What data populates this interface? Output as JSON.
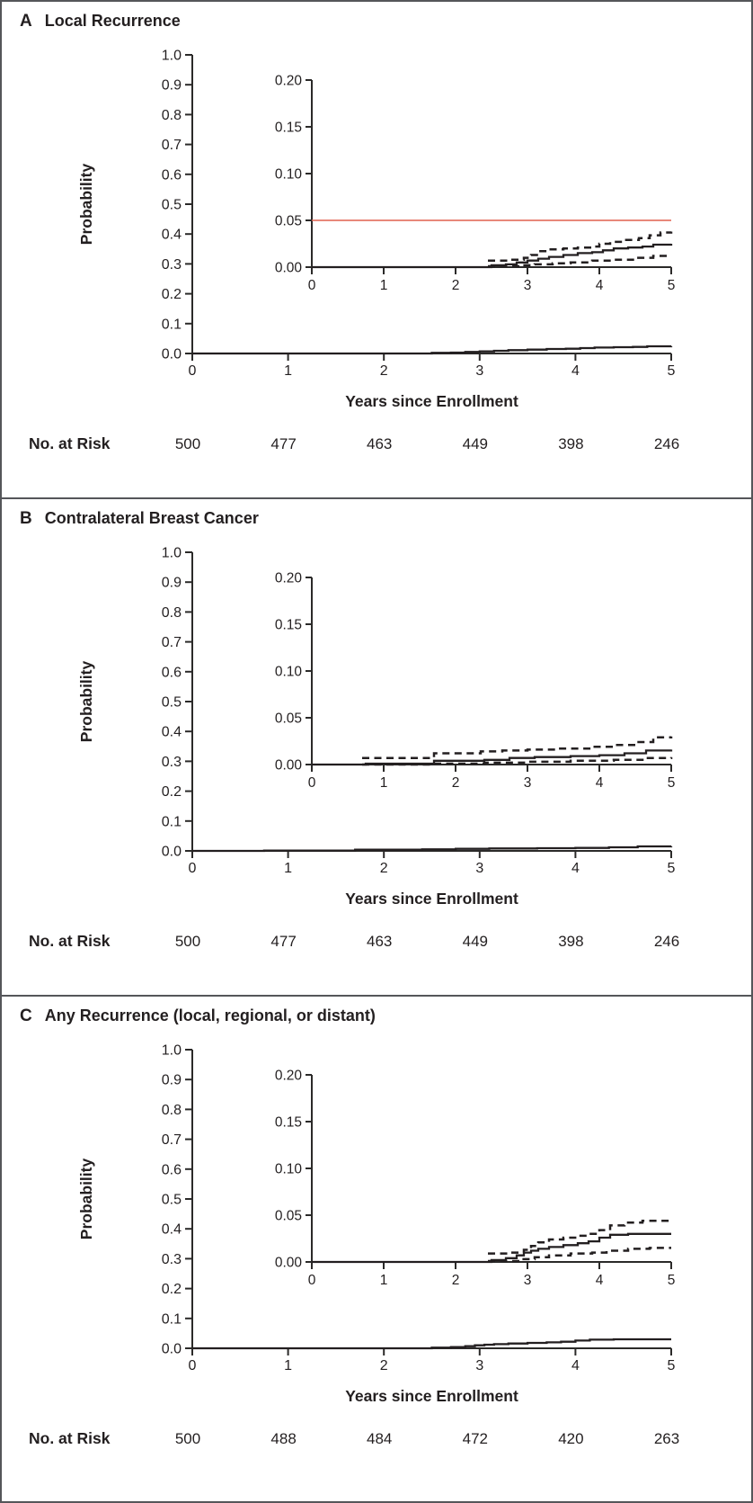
{
  "panels": [
    {
      "letter": "A",
      "title": "Local Recurrence"
    },
    {
      "letter": "B",
      "title": "Contralateral Breast Cancer"
    },
    {
      "letter": "C",
      "title": "Any Recurrence (local, regional, or distant)"
    }
  ],
  "chart_data": [
    {
      "type": "line",
      "panel": "A",
      "title": "Local Recurrence",
      "xlabel": "Years since Enrollment",
      "ylabel": "Probability",
      "line_color": "#231f20",
      "main_axis": {
        "xlim": [
          0,
          5
        ],
        "ylim": [
          0,
          1
        ],
        "xticks": [
          0,
          1,
          2,
          3,
          4,
          5
        ],
        "xticklabels": [
          "0",
          "1",
          "2",
          "3",
          "4",
          "5"
        ],
        "yticks": [
          0,
          0.1,
          0.2,
          0.3,
          0.4,
          0.5,
          0.6,
          0.7,
          0.8,
          0.9,
          1.0
        ],
        "yticklabels": [
          "0.0",
          "0.1",
          "0.2",
          "0.3",
          "0.4",
          "0.5",
          "0.6",
          "0.7",
          "0.8",
          "0.9",
          "1.0"
        ]
      },
      "inset_axis": {
        "xlim": [
          0,
          5
        ],
        "ylim": [
          0,
          0.2
        ],
        "xticks": [
          0,
          1,
          2,
          3,
          4,
          5
        ],
        "xticklabels": [
          "0",
          "1",
          "2",
          "3",
          "4",
          "5"
        ],
        "yticks": [
          0,
          0.05,
          0.1,
          0.15,
          0.2
        ],
        "yticklabels": [
          "0.00",
          "0.05",
          "0.10",
          "0.15",
          "0.20"
        ]
      },
      "reference_line": {
        "y": 0.05,
        "color": "#e0614f"
      },
      "series": [
        {
          "name": "cumulative-incidence-estimate",
          "style": "solid",
          "points": [
            [
              0,
              0
            ],
            [
              2.5,
              0.002
            ],
            [
              2.7,
              0.003
            ],
            [
              2.85,
              0.005
            ],
            [
              3.0,
              0.007
            ],
            [
              3.15,
              0.009
            ],
            [
              3.3,
              0.011
            ],
            [
              3.5,
              0.013
            ],
            [
              3.7,
              0.015
            ],
            [
              3.9,
              0.016
            ],
            [
              4.05,
              0.018
            ],
            [
              4.2,
              0.02
            ],
            [
              4.4,
              0.021
            ],
            [
              4.6,
              0.022
            ],
            [
              4.75,
              0.024
            ],
            [
              5,
              0.025
            ]
          ]
        },
        {
          "name": "upper-95pct-confidence-band",
          "style": "dashed",
          "points": [
            [
              2.45,
              0.007
            ],
            [
              2.75,
              0.008
            ],
            [
              2.95,
              0.01
            ],
            [
              3.05,
              0.013
            ],
            [
              3.15,
              0.017
            ],
            [
              3.3,
              0.019
            ],
            [
              3.5,
              0.02
            ],
            [
              3.7,
              0.021
            ],
            [
              3.9,
              0.022
            ],
            [
              4.0,
              0.025
            ],
            [
              4.15,
              0.027
            ],
            [
              4.35,
              0.029
            ],
            [
              4.55,
              0.031
            ],
            [
              4.7,
              0.034
            ],
            [
              4.85,
              0.037
            ],
            [
              5,
              0.038
            ]
          ]
        },
        {
          "name": "lower-95pct-confidence-band",
          "style": "dashed",
          "points": [
            [
              2.45,
              0.001
            ],
            [
              2.9,
              0.002
            ],
            [
              3.1,
              0.003
            ],
            [
              3.35,
              0.004
            ],
            [
              3.6,
              0.005
            ],
            [
              3.9,
              0.007
            ],
            [
              4.2,
              0.008
            ],
            [
              4.5,
              0.01
            ],
            [
              4.75,
              0.012
            ],
            [
              5,
              0.012
            ]
          ]
        }
      ],
      "no_at_risk": {
        "label": "No. at Risk",
        "times": [
          0,
          1,
          2,
          3,
          4,
          5
        ],
        "counts": [
          500,
          477,
          463,
          449,
          398,
          246
        ]
      }
    },
    {
      "type": "line",
      "panel": "B",
      "title": "Contralateral Breast Cancer",
      "xlabel": "Years since Enrollment",
      "ylabel": "Probability",
      "line_color": "#231f20",
      "main_axis": {
        "xlim": [
          0,
          5
        ],
        "ylim": [
          0,
          1
        ],
        "xticks": [
          0,
          1,
          2,
          3,
          4,
          5
        ],
        "xticklabels": [
          "0",
          "1",
          "2",
          "3",
          "4",
          "5"
        ],
        "yticks": [
          0,
          0.1,
          0.2,
          0.3,
          0.4,
          0.5,
          0.6,
          0.7,
          0.8,
          0.9,
          1.0
        ],
        "yticklabels": [
          "0.0",
          "0.1",
          "0.2",
          "0.3",
          "0.4",
          "0.5",
          "0.6",
          "0.7",
          "0.8",
          "0.9",
          "1.0"
        ]
      },
      "inset_axis": {
        "xlim": [
          0,
          5
        ],
        "ylim": [
          0,
          0.2
        ],
        "xticks": [
          0,
          1,
          2,
          3,
          4,
          5
        ],
        "xticklabels": [
          "0",
          "1",
          "2",
          "3",
          "4",
          "5"
        ],
        "yticks": [
          0,
          0.05,
          0.1,
          0.15,
          0.2
        ],
        "yticklabels": [
          "0.00",
          "0.05",
          "0.10",
          "0.15",
          "0.20"
        ]
      },
      "reference_line": null,
      "series": [
        {
          "name": "cumulative-incidence-estimate",
          "style": "solid",
          "points": [
            [
              0,
              0
            ],
            [
              0.75,
              0.001
            ],
            [
              1.7,
              0.004
            ],
            [
              2.4,
              0.005
            ],
            [
              2.75,
              0.007
            ],
            [
              3.1,
              0.008
            ],
            [
              3.6,
              0.009
            ],
            [
              4.0,
              0.01
            ],
            [
              4.35,
              0.012
            ],
            [
              4.65,
              0.015
            ],
            [
              5,
              0.016
            ]
          ]
        },
        {
          "name": "upper-95pct-confidence-band",
          "style": "dashed",
          "points": [
            [
              0.7,
              0.007
            ],
            [
              1.7,
              0.012
            ],
            [
              2.35,
              0.014
            ],
            [
              2.65,
              0.015
            ],
            [
              3.0,
              0.016
            ],
            [
              3.4,
              0.017
            ],
            [
              3.9,
              0.019
            ],
            [
              4.2,
              0.021
            ],
            [
              4.5,
              0.024
            ],
            [
              4.75,
              0.029
            ],
            [
              5,
              0.03
            ]
          ]
        },
        {
          "name": "lower-95pct-confidence-band",
          "style": "dashed",
          "points": [
            [
              0.7,
              0
            ],
            [
              1.7,
              0.001
            ],
            [
              2.4,
              0.002
            ],
            [
              3.0,
              0.003
            ],
            [
              3.6,
              0.004
            ],
            [
              4.2,
              0.005
            ],
            [
              4.65,
              0.007
            ],
            [
              5,
              0.008
            ]
          ]
        }
      ],
      "no_at_risk": {
        "label": "No. at Risk",
        "times": [
          0,
          1,
          2,
          3,
          4,
          5
        ],
        "counts": [
          500,
          477,
          463,
          449,
          398,
          246
        ]
      }
    },
    {
      "type": "line",
      "panel": "C",
      "title": "Any Recurrence (local, regional, or distant)",
      "xlabel": "Years since Enrollment",
      "ylabel": "Probability",
      "line_color": "#231f20",
      "main_axis": {
        "xlim": [
          0,
          5
        ],
        "ylim": [
          0,
          1
        ],
        "xticks": [
          0,
          1,
          2,
          3,
          4,
          5
        ],
        "xticklabels": [
          "0",
          "1",
          "2",
          "3",
          "4",
          "5"
        ],
        "yticks": [
          0,
          0.1,
          0.2,
          0.3,
          0.4,
          0.5,
          0.6,
          0.7,
          0.8,
          0.9,
          1.0
        ],
        "yticklabels": [
          "0.0",
          "0.1",
          "0.2",
          "0.3",
          "0.4",
          "0.5",
          "0.6",
          "0.7",
          "0.8",
          "0.9",
          "1.0"
        ]
      },
      "inset_axis": {
        "xlim": [
          0,
          5
        ],
        "ylim": [
          0,
          0.2
        ],
        "xticks": [
          0,
          1,
          2,
          3,
          4,
          5
        ],
        "xticklabels": [
          "0",
          "1",
          "2",
          "3",
          "4",
          "5"
        ],
        "yticks": [
          0,
          0.05,
          0.1,
          0.15,
          0.2
        ],
        "yticklabels": [
          "0.00",
          "0.05",
          "0.10",
          "0.15",
          "0.20"
        ]
      },
      "reference_line": null,
      "series": [
        {
          "name": "cumulative-incidence-estimate",
          "style": "solid",
          "points": [
            [
              0,
              0
            ],
            [
              2.5,
              0.002
            ],
            [
              2.7,
              0.004
            ],
            [
              2.85,
              0.007
            ],
            [
              2.95,
              0.01
            ],
            [
              3.05,
              0.012
            ],
            [
              3.15,
              0.014
            ],
            [
              3.3,
              0.016
            ],
            [
              3.5,
              0.018
            ],
            [
              3.7,
              0.02
            ],
            [
              3.85,
              0.022
            ],
            [
              4.0,
              0.026
            ],
            [
              4.15,
              0.029
            ],
            [
              4.4,
              0.03
            ],
            [
              5,
              0.03
            ]
          ]
        },
        {
          "name": "upper-95pct-confidence-band",
          "style": "dashed",
          "points": [
            [
              2.45,
              0.009
            ],
            [
              2.75,
              0.01
            ],
            [
              2.95,
              0.013
            ],
            [
              3.05,
              0.017
            ],
            [
              3.15,
              0.021
            ],
            [
              3.3,
              0.024
            ],
            [
              3.5,
              0.026
            ],
            [
              3.7,
              0.028
            ],
            [
              3.85,
              0.03
            ],
            [
              4.0,
              0.034
            ],
            [
              4.15,
              0.039
            ],
            [
              4.35,
              0.042
            ],
            [
              4.6,
              0.044
            ],
            [
              5,
              0.044
            ]
          ]
        },
        {
          "name": "lower-95pct-confidence-band",
          "style": "dashed",
          "points": [
            [
              2.45,
              0.001
            ],
            [
              2.9,
              0.003
            ],
            [
              3.1,
              0.005
            ],
            [
              3.3,
              0.007
            ],
            [
              3.6,
              0.009
            ],
            [
              3.9,
              0.01
            ],
            [
              4.1,
              0.012
            ],
            [
              4.4,
              0.014
            ],
            [
              4.7,
              0.015
            ],
            [
              5,
              0.015
            ]
          ]
        }
      ],
      "no_at_risk": {
        "label": "No. at Risk",
        "times": [
          0,
          1,
          2,
          3,
          4,
          5
        ],
        "counts": [
          500,
          488,
          484,
          472,
          420,
          263
        ]
      }
    }
  ]
}
